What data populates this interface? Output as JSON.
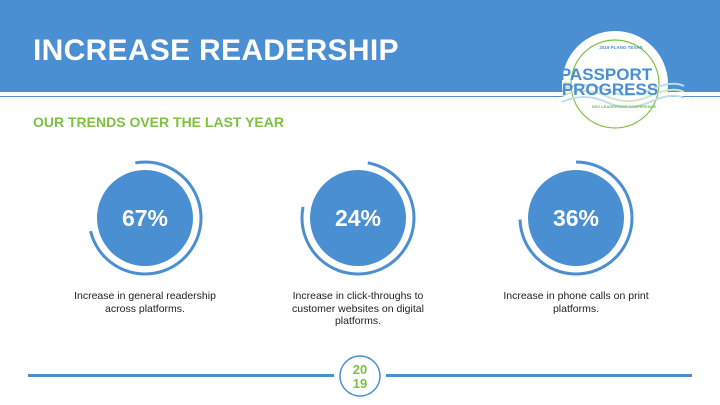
{
  "header": {
    "title": "INCREASE READERSHIP",
    "subtitle": "OUR TRENDS OVER THE LAST YEAR"
  },
  "logo": {
    "line1": "PASSPORT",
    "connector": "to",
    "line2": "PROGRESS",
    "top_text": "2019 PLANO TEXAS",
    "bottom_text": "SEO LEADERSHIP CONFERENCE"
  },
  "stats": [
    {
      "value": "67%",
      "caption": "Increase in general readership across platforms."
    },
    {
      "value": "24%",
      "caption": "Increase in click-throughs to customer websites on digital platforms."
    },
    {
      "value": "36%",
      "caption": "Increase in phone calls on print platforms."
    }
  ],
  "footer": {
    "year_top": "20",
    "year_bottom": "19"
  },
  "colors": {
    "brand_blue": "#4a8fd2",
    "accent_green": "#7cc142"
  }
}
